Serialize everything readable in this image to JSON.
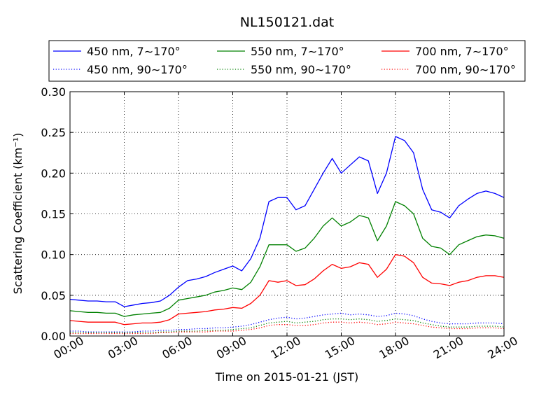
{
  "chart_data": {
    "type": "line",
    "title": "NL150121.dat",
    "xlabel": "Time on 2015-01-21 (JST)",
    "ylabel": "Scattering Coefficient (km⁻¹)",
    "xlim": [
      0,
      24
    ],
    "ylim": [
      0,
      0.3
    ],
    "grid": true,
    "legend_position": "top, above plot, 3 columns",
    "x_ticks": [
      "00:00",
      "03:00",
      "06:00",
      "09:00",
      "12:00",
      "15:00",
      "18:00",
      "21:00",
      "24:00"
    ],
    "y_ticks": [
      "0.00",
      "0.05",
      "0.10",
      "0.15",
      "0.20",
      "0.25",
      "0.30"
    ],
    "x_hours": [
      0,
      0.5,
      1,
      1.5,
      2,
      2.5,
      3,
      3.5,
      4,
      4.5,
      5,
      5.5,
      6,
      6.5,
      7,
      7.5,
      8,
      8.5,
      9,
      9.5,
      10,
      10.5,
      11,
      11.5,
      12,
      12.5,
      13,
      13.5,
      14,
      14.5,
      15,
      15.5,
      16,
      16.5,
      17,
      17.5,
      18,
      18.5,
      19,
      19.5,
      20,
      20.5,
      21,
      21.5,
      22,
      22.5,
      23,
      23.5,
      24
    ],
    "series": [
      {
        "name": "450 nm, 7∼170°",
        "color": "#0000ff",
        "style": "solid",
        "values": [
          0.045,
          0.044,
          0.043,
          0.043,
          0.042,
          0.042,
          0.036,
          0.038,
          0.04,
          0.041,
          0.043,
          0.05,
          0.06,
          0.068,
          0.07,
          0.073,
          0.078,
          0.082,
          0.086,
          0.08,
          0.095,
          0.12,
          0.165,
          0.17,
          0.17,
          0.155,
          0.16,
          0.18,
          0.2,
          0.218,
          0.2,
          0.21,
          0.22,
          0.215,
          0.175,
          0.2,
          0.245,
          0.24,
          0.225,
          0.18,
          0.155,
          0.152,
          0.145,
          0.16,
          0.168,
          0.175,
          0.178,
          0.175,
          0.17
        ]
      },
      {
        "name": "450 nm, 90∼170°",
        "color": "#0000ff",
        "style": "dotted",
        "values": [
          0.006,
          0.006,
          0.005,
          0.005,
          0.005,
          0.005,
          0.005,
          0.005,
          0.006,
          0.006,
          0.007,
          0.007,
          0.008,
          0.008,
          0.009,
          0.009,
          0.01,
          0.01,
          0.011,
          0.012,
          0.014,
          0.017,
          0.02,
          0.022,
          0.023,
          0.021,
          0.022,
          0.024,
          0.026,
          0.027,
          0.028,
          0.026,
          0.027,
          0.026,
          0.024,
          0.025,
          0.028,
          0.027,
          0.025,
          0.021,
          0.018,
          0.016,
          0.015,
          0.015,
          0.015,
          0.016,
          0.016,
          0.016,
          0.015
        ]
      },
      {
        "name": "550 nm, 7∼170°",
        "color": "#008000",
        "style": "solid",
        "values": [
          0.031,
          0.03,
          0.029,
          0.029,
          0.028,
          0.028,
          0.024,
          0.026,
          0.027,
          0.028,
          0.029,
          0.034,
          0.044,
          0.046,
          0.048,
          0.05,
          0.054,
          0.056,
          0.059,
          0.057,
          0.066,
          0.085,
          0.112,
          0.112,
          0.112,
          0.104,
          0.108,
          0.12,
          0.135,
          0.145,
          0.135,
          0.14,
          0.148,
          0.145,
          0.117,
          0.135,
          0.165,
          0.16,
          0.15,
          0.12,
          0.11,
          0.108,
          0.1,
          0.112,
          0.117,
          0.122,
          0.124,
          0.123,
          0.12
        ]
      },
      {
        "name": "550 nm, 90∼170°",
        "color": "#008000",
        "style": "dotted",
        "values": [
          0.004,
          0.004,
          0.004,
          0.004,
          0.004,
          0.004,
          0.004,
          0.004,
          0.004,
          0.004,
          0.005,
          0.005,
          0.006,
          0.006,
          0.006,
          0.007,
          0.007,
          0.007,
          0.008,
          0.009,
          0.01,
          0.013,
          0.016,
          0.017,
          0.018,
          0.016,
          0.017,
          0.018,
          0.02,
          0.021,
          0.021,
          0.02,
          0.021,
          0.02,
          0.018,
          0.019,
          0.021,
          0.02,
          0.019,
          0.016,
          0.014,
          0.012,
          0.011,
          0.011,
          0.011,
          0.012,
          0.012,
          0.012,
          0.011
        ]
      },
      {
        "name": "700 nm, 7∼170°",
        "color": "#ff0000",
        "style": "solid",
        "values": [
          0.019,
          0.018,
          0.017,
          0.017,
          0.017,
          0.017,
          0.014,
          0.015,
          0.016,
          0.016,
          0.017,
          0.02,
          0.027,
          0.028,
          0.029,
          0.03,
          0.032,
          0.033,
          0.035,
          0.034,
          0.04,
          0.05,
          0.068,
          0.066,
          0.068,
          0.062,
          0.063,
          0.07,
          0.08,
          0.088,
          0.083,
          0.085,
          0.09,
          0.088,
          0.072,
          0.082,
          0.1,
          0.098,
          0.09,
          0.072,
          0.065,
          0.064,
          0.062,
          0.066,
          0.068,
          0.072,
          0.074,
          0.074,
          0.072
        ]
      },
      {
        "name": "700 nm, 90∼170°",
        "color": "#ff0000",
        "style": "dotted",
        "values": [
          0.003,
          0.003,
          0.003,
          0.003,
          0.003,
          0.003,
          0.003,
          0.003,
          0.003,
          0.003,
          0.004,
          0.004,
          0.005,
          0.005,
          0.005,
          0.005,
          0.006,
          0.006,
          0.006,
          0.007,
          0.008,
          0.01,
          0.013,
          0.014,
          0.014,
          0.013,
          0.013,
          0.014,
          0.016,
          0.017,
          0.017,
          0.016,
          0.017,
          0.016,
          0.014,
          0.015,
          0.017,
          0.016,
          0.015,
          0.013,
          0.011,
          0.01,
          0.009,
          0.009,
          0.009,
          0.01,
          0.01,
          0.01,
          0.009
        ]
      }
    ]
  }
}
